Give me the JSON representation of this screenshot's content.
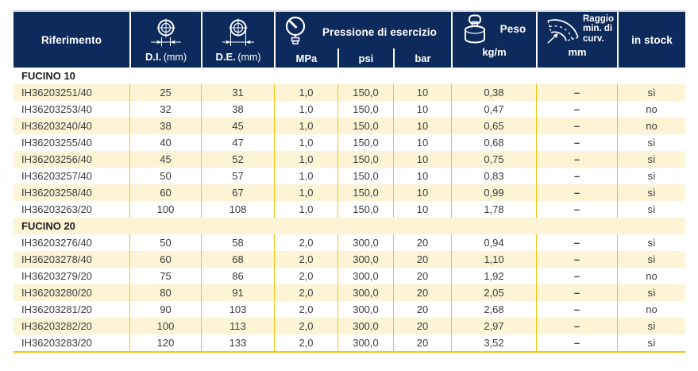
{
  "header": {
    "riferimento": "Riferimento",
    "di": {
      "label": "D.I.",
      "unit": "(mm)",
      "icon": "inner-diameter-icon"
    },
    "de": {
      "label": "D.E.",
      "unit": "(mm)",
      "icon": "outer-diameter-icon"
    },
    "pressione": {
      "title": "Pressione di esercizio",
      "icon": "pressure-gauge-icon",
      "sub": [
        "MPa",
        "psi",
        "bar"
      ]
    },
    "peso": {
      "title": "Peso",
      "unit": "kg/m",
      "icon": "weight-icon"
    },
    "raggio": {
      "title": "Raggio min. di curv.",
      "unit": "mm",
      "icon": "bend-radius-icon"
    },
    "stock": "in stock"
  },
  "groups": [
    {
      "label": "FUCINO 10",
      "rows": [
        [
          "IH36203251/40",
          "25",
          "31",
          "1,0",
          "150,0",
          "10",
          "0,38",
          "–",
          "sì"
        ],
        [
          "IH36203253/40",
          "32",
          "38",
          "1,0",
          "150,0",
          "10",
          "0,47",
          "–",
          "no"
        ],
        [
          "IH36203240/40",
          "38",
          "45",
          "1,0",
          "150,0",
          "10",
          "0,65",
          "–",
          "no"
        ],
        [
          "IH36203255/40",
          "40",
          "47",
          "1,0",
          "150,0",
          "10",
          "0,68",
          "–",
          "sì"
        ],
        [
          "IH36203256/40",
          "45",
          "52",
          "1,0",
          "150,0",
          "10",
          "0,75",
          "–",
          "sì"
        ],
        [
          "IH36203257/40",
          "50",
          "57",
          "1,0",
          "150,0",
          "10",
          "0,83",
          "–",
          "sì"
        ],
        [
          "IH36203258/40",
          "60",
          "67",
          "1,0",
          "150,0",
          "10",
          "0,99",
          "–",
          "sì"
        ],
        [
          "IH36203263/20",
          "100",
          "108",
          "1,0",
          "150,0",
          "10",
          "1,78",
          "–",
          "sì"
        ]
      ]
    },
    {
      "label": "FUCINO 20",
      "rows": [
        [
          "IH36203276/40",
          "50",
          "58",
          "2,0",
          "300,0",
          "20",
          "0,94",
          "–",
          "sì"
        ],
        [
          "IH36203278/40",
          "60",
          "68",
          "2,0",
          "300,0",
          "20",
          "1,10",
          "–",
          "sì"
        ],
        [
          "IH36203279/20",
          "75",
          "86",
          "2,0",
          "300,0",
          "20",
          "1,92",
          "–",
          "no"
        ],
        [
          "IH36203280/20",
          "80",
          "91",
          "2,0",
          "300,0",
          "20",
          "2,05",
          "–",
          "sì"
        ],
        [
          "IH36203281/20",
          "90",
          "103",
          "2,0",
          "300,0",
          "20",
          "2,68",
          "–",
          "no"
        ],
        [
          "IH36203282/20",
          "100",
          "113",
          "2,0",
          "300,0",
          "20",
          "2,97",
          "–",
          "sì"
        ],
        [
          "IH36203283/20",
          "120",
          "133",
          "2,0",
          "300,0",
          "20",
          "3,52",
          "–",
          "sì"
        ]
      ]
    }
  ],
  "colors": {
    "header_bg": "#0d2a5c",
    "row_alt": "#fdf3d5",
    "grid_gold": "#f0c314",
    "text": "#3c3c3c"
  }
}
